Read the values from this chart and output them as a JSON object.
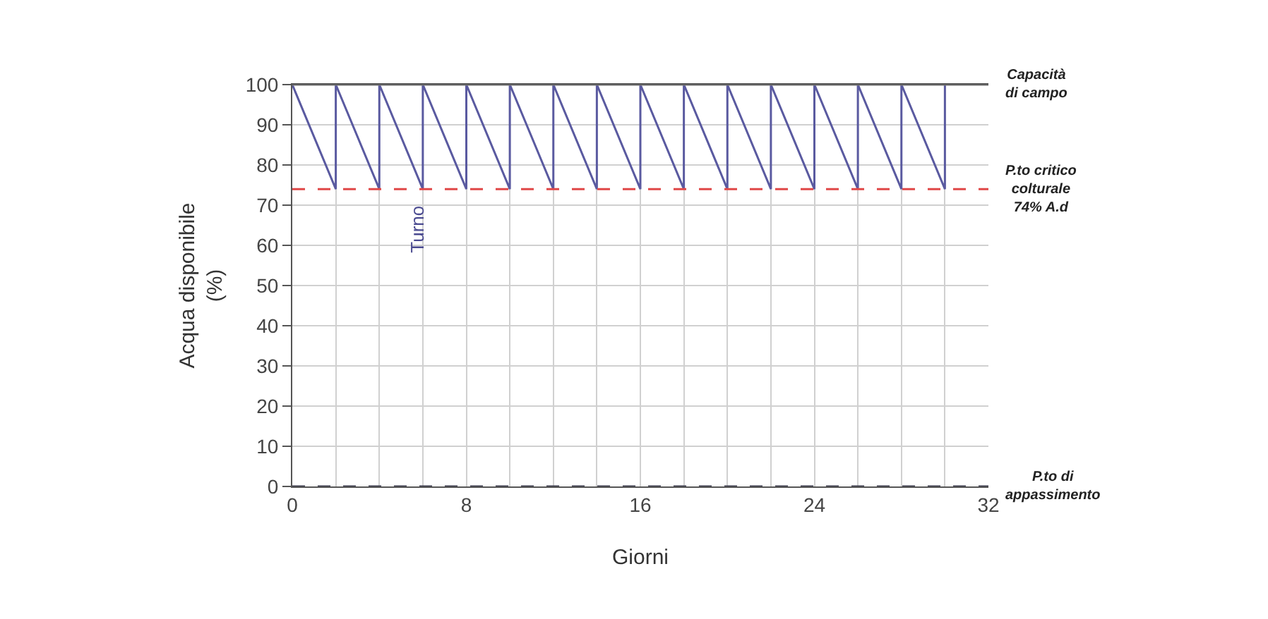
{
  "chart_data": {
    "type": "line",
    "xlabel": "Giorni",
    "ylabel": "Acqua disponibile\n(%)",
    "x": [
      0,
      2,
      2,
      4,
      4,
      6,
      6,
      8,
      8,
      10,
      10,
      12,
      12,
      14,
      14,
      16,
      16,
      18,
      18,
      20,
      20,
      22,
      22,
      24,
      24,
      26,
      26,
      28,
      28,
      30,
      30
    ],
    "series": [
      {
        "color": "#5a5aa0",
        "values": [
          100,
          74,
          100,
          74,
          100,
          74,
          100,
          74,
          100,
          74,
          100,
          74,
          100,
          74,
          100,
          74,
          100,
          74,
          100,
          74,
          100,
          74,
          100,
          74,
          100,
          74,
          100,
          74,
          100,
          74,
          100
        ]
      }
    ],
    "xlim": [
      0,
      32
    ],
    "xticks": [
      0,
      {
        "value": 2,
        "label": null
      },
      {
        "value": 4,
        "label": null
      },
      {
        "value": 6,
        "label": null
      },
      8,
      {
        "value": 10,
        "label": null
      },
      {
        "value": 12,
        "label": null
      },
      {
        "value": 14,
        "label": null
      },
      16,
      {
        "value": 18,
        "label": null
      },
      {
        "value": 20,
        "label": null
      },
      {
        "value": 22,
        "label": null
      },
      24,
      {
        "value": 26,
        "label": null
      },
      {
        "value": 28,
        "label": null
      },
      {
        "value": 30,
        "label": null
      },
      32
    ],
    "ylim": [
      0,
      100
    ],
    "yticks": [
      0,
      10,
      20,
      30,
      40,
      50,
      60,
      70,
      80,
      90,
      100
    ],
    "grid": true,
    "marker": "none",
    "line_style": "solid",
    "ref_lines": [
      {
        "axis": "y",
        "value": 100,
        "label": "Capacità\ndi campo",
        "color": "#707070",
        "line_style": "solid"
      },
      {
        "axis": "y",
        "value": 74,
        "label": "P.to critico\ncolturale\n74% A.d",
        "color": "#e04848",
        "line_style": "dashed"
      },
      {
        "axis": "y",
        "value": 0,
        "label": "P.to di\nappassimento",
        "color": "#404050",
        "line_style": "dashed"
      }
    ],
    "annotations": [
      "Turno"
    ]
  }
}
